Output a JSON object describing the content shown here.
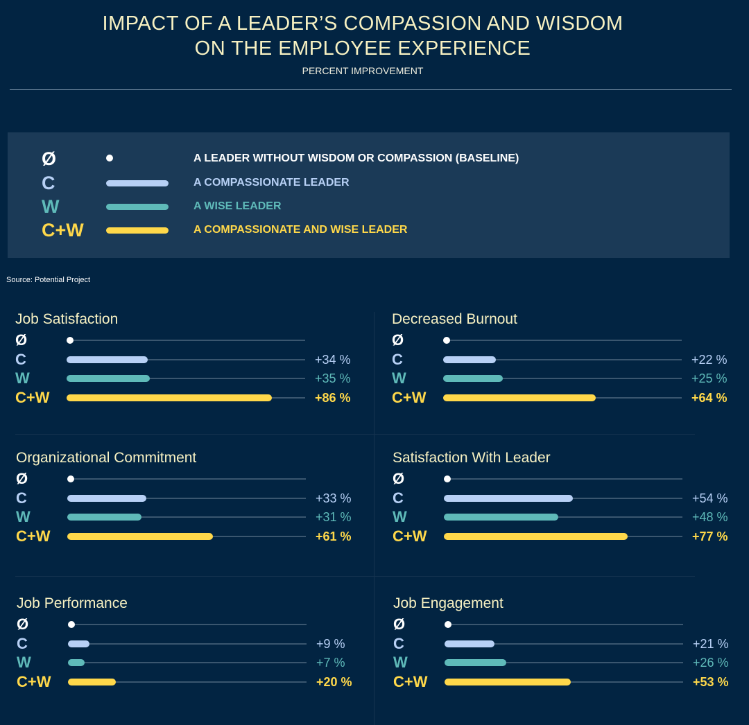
{
  "header": {
    "title_line1": "IMPACT OF A LEADER’S COMPASSION AND WISDOM",
    "title_line2": "ON THE EMPLOYEE EXPERIENCE",
    "subtitle": "PERCENT IMPROVEMENT"
  },
  "colors": {
    "background": "#022442",
    "legend_bg": "#1b3a57",
    "baseline": "#ffffff",
    "compassion": "#b7d0f5",
    "wisdom": "#5fbab9",
    "both": "#ffd84a",
    "title": "#f7f1c2"
  },
  "legend": [
    {
      "symbol": "Ø",
      "label": "A LEADER WITHOUT WISDOM OR COMPASSION (BASELINE)",
      "color": "#ffffff",
      "marker": "dot"
    },
    {
      "symbol": "C",
      "label": "A COMPASSIONATE LEADER",
      "color": "#b7d0f5",
      "marker": "bar"
    },
    {
      "symbol": "W",
      "label": "A WISE LEADER",
      "color": "#5fbab9",
      "marker": "bar"
    },
    {
      "symbol": "C+W",
      "label": "A COMPASSIONATE AND WISE LEADER",
      "color": "#ffd84a",
      "marker": "bar"
    }
  ],
  "source": "Source: Potential Project",
  "chart_data": {
    "type": "bar",
    "orientation": "horizontal",
    "xlim": [
      0,
      100
    ],
    "categories": [
      "Ø",
      "C",
      "W",
      "C+W"
    ],
    "panels": [
      {
        "title": "Job Satisfaction",
        "values": [
          0,
          34,
          35,
          86
        ],
        "labels": [
          "",
          "+34 %",
          "+35 %",
          "+86 %"
        ]
      },
      {
        "title": "Decreased Burnout",
        "values": [
          0,
          22,
          25,
          64
        ],
        "labels": [
          "",
          "+22 %",
          "+25 %",
          "+64 %"
        ]
      },
      {
        "title": "Organizational Commitment",
        "values": [
          0,
          33,
          31,
          61
        ],
        "labels": [
          "",
          "+33 %",
          "+31 %",
          "+61 %"
        ]
      },
      {
        "title": "Satisfaction With Leader",
        "values": [
          0,
          54,
          48,
          77
        ],
        "labels": [
          "",
          "+54 %",
          "+48 %",
          "+77 %"
        ]
      },
      {
        "title": "Job Performance",
        "values": [
          0,
          9,
          7,
          20
        ],
        "labels": [
          "",
          "+9 %",
          "+7 %",
          "+20 %"
        ]
      },
      {
        "title": "Job Engagement",
        "values": [
          0,
          21,
          26,
          53
        ],
        "labels": [
          "",
          "+21 %",
          "+26 %",
          "+53 %"
        ]
      }
    ]
  }
}
